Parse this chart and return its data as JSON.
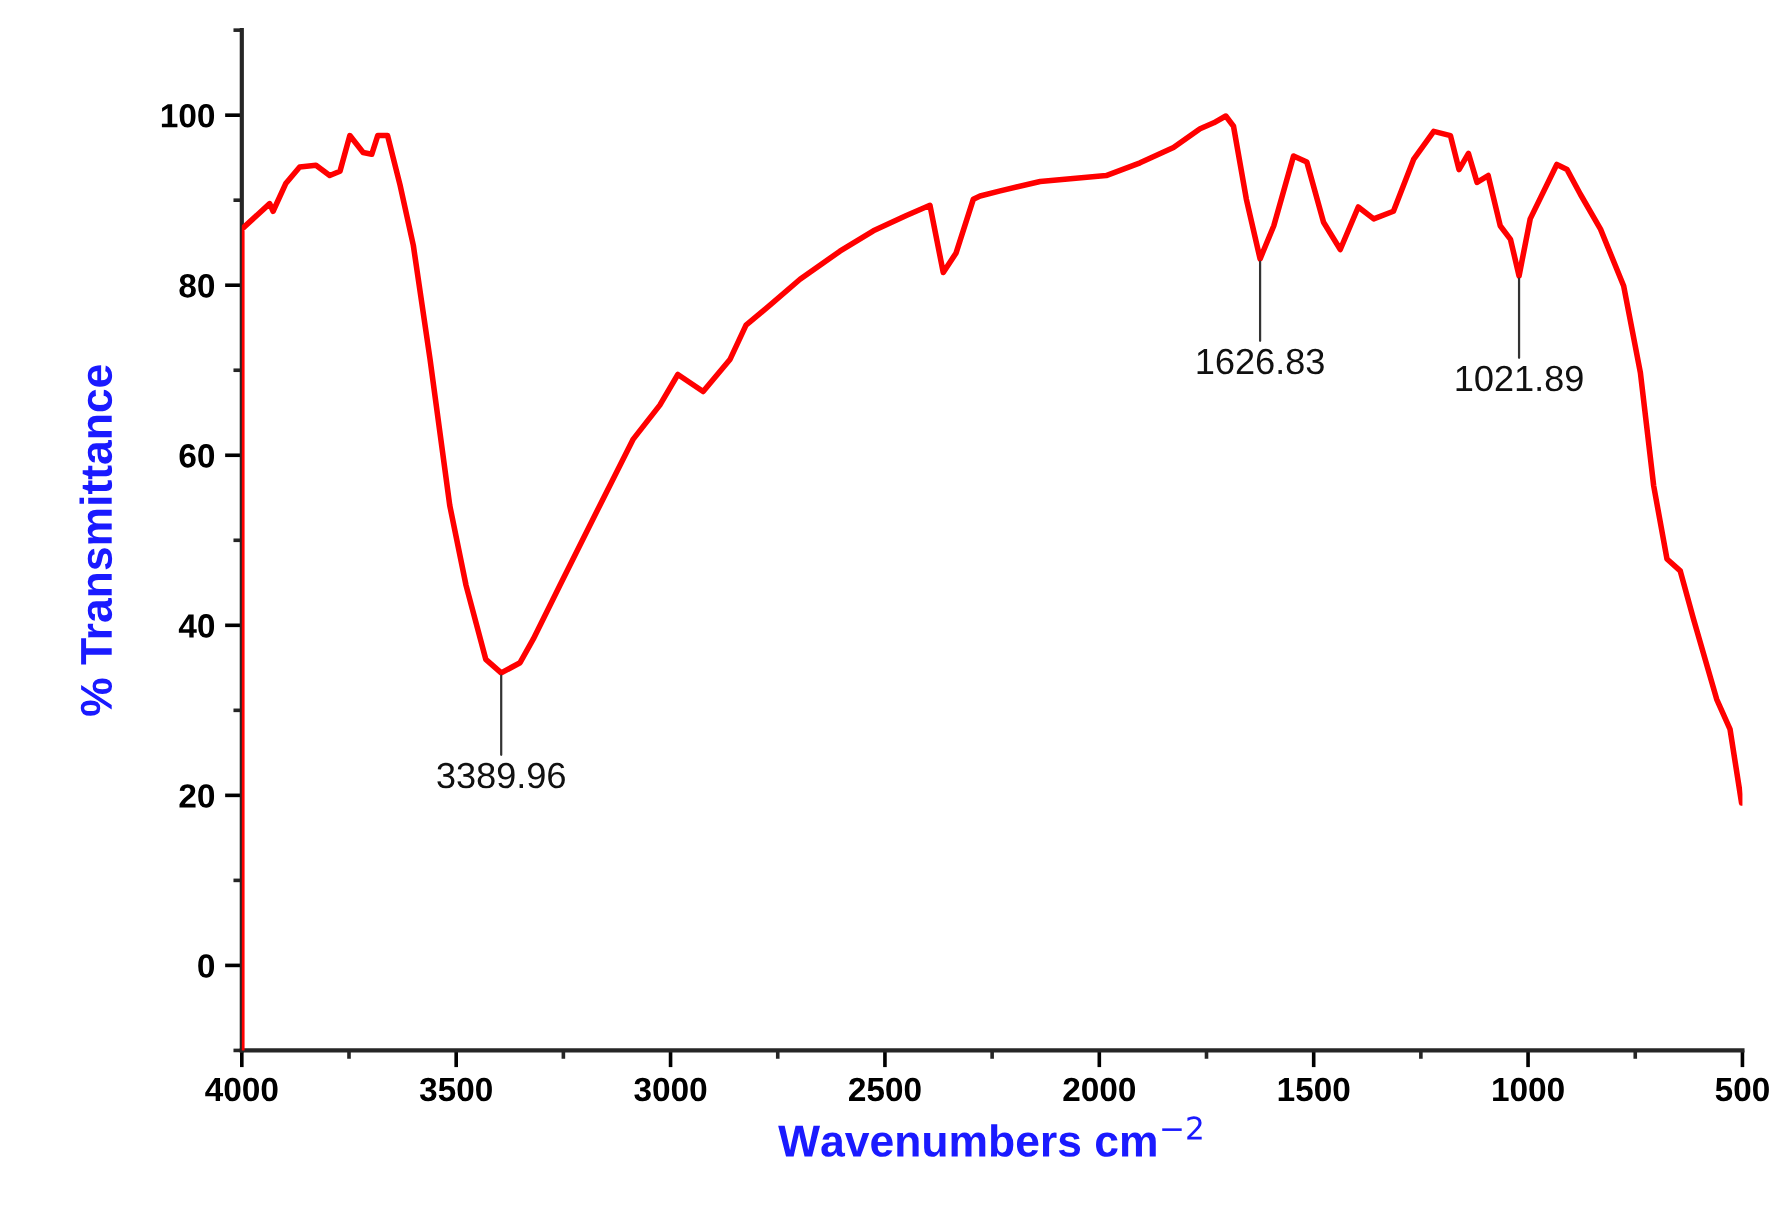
{
  "chart_data": {
    "type": "line",
    "xlabel": "Wavenumbers cm$^{−2}$",
    "ylabel": "% Transmittance",
    "xlim": [
      4000,
      500
    ],
    "ylim": [
      -10,
      110
    ],
    "xticks": [
      4000,
      3500,
      3000,
      2500,
      2000,
      1500,
      1000,
      500
    ],
    "yticks": [
      0,
      20,
      40,
      60,
      80,
      100
    ],
    "grid": false,
    "marker": "none",
    "line_style": "solid",
    "series": [
      {
        "color": "#ff0000",
        "x": [
          4000,
          4000,
          3935,
          3927,
          3897,
          3865,
          3827,
          3795,
          3771,
          3748,
          3717,
          3697,
          3683,
          3660,
          3631,
          3600,
          3561,
          3515,
          3477,
          3431,
          3395,
          3351,
          3320,
          3258,
          3165,
          3087,
          3025,
          2983,
          2924,
          2861,
          2824,
          2760,
          2698,
          2605,
          2527,
          2450,
          2395,
          2364,
          2334,
          2294,
          2278,
          2231,
          2138,
          1984,
          1905,
          1827,
          1765,
          1733,
          1705,
          1687,
          1657,
          1625,
          1593,
          1547,
          1516,
          1477,
          1438,
          1396,
          1360,
          1314,
          1267,
          1220,
          1181,
          1161,
          1139,
          1119,
          1093,
          1065,
          1041,
          1021,
          995,
          933,
          909,
          878,
          831,
          777,
          738,
          707,
          676,
          645,
          614,
          560,
          529,
          502
        ],
        "values": [
          -10,
          86.6,
          89.6,
          88.7,
          92,
          93.9,
          94.1,
          92.9,
          93.4,
          97.6,
          95.6,
          95.4,
          97.6,
          97.6,
          91.8,
          84.7,
          71.3,
          54.1,
          44.7,
          36,
          34.4,
          35.6,
          38.4,
          44.7,
          54.1,
          61.9,
          65.9,
          69.5,
          67.5,
          71.3,
          75.3,
          78,
          80.7,
          84,
          86.4,
          88.2,
          89.4,
          81.5,
          83.8,
          90.1,
          90.5,
          91.1,
          92.2,
          92.9,
          94.4,
          96.2,
          98.4,
          99.1,
          99.9,
          98.7,
          90.1,
          83.1,
          87,
          95.2,
          94.5,
          87.4,
          84.2,
          89.2,
          87.8,
          88.7,
          94.8,
          98.1,
          97.6,
          93.6,
          95.5,
          92.1,
          92.9,
          87,
          85.4,
          81.1,
          87.8,
          94.2,
          93.6,
          90.7,
          86.6,
          79.9,
          69.7,
          56.4,
          47.8,
          46.4,
          40.7,
          31.3,
          27.8,
          19.1
        ]
      }
    ],
    "annotations": [
      {
        "text": "3389.96",
        "x": 3395,
        "y": 34.4
      },
      {
        "text": "1626.83",
        "x": 1625,
        "y": 83.1
      },
      {
        "text": "1021.89",
        "x": 1021,
        "y": 81.1
      }
    ]
  }
}
